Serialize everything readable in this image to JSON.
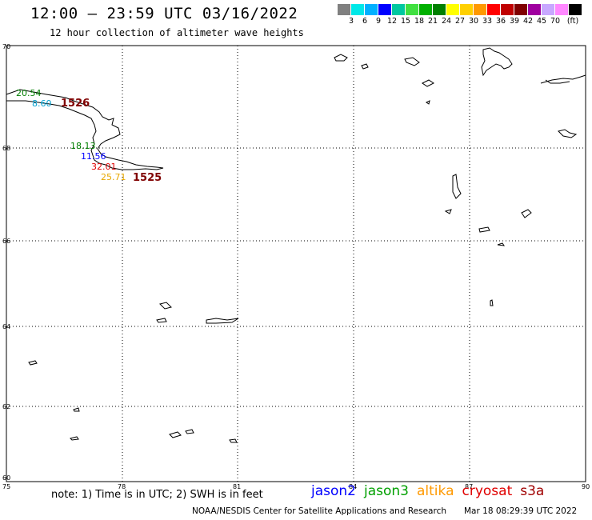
{
  "header": {
    "title": "12:00 — 23:59 UTC 03/16/2022",
    "subtitle": "12 hour collection of altimeter wave heights"
  },
  "legend": {
    "unit": "(ft)",
    "bins": [
      {
        "color": "#808080",
        "label": ""
      },
      {
        "color": "#00e8e8",
        "label": "3"
      },
      {
        "color": "#00b0ff",
        "label": "6"
      },
      {
        "color": "#0000ff",
        "label": "9"
      },
      {
        "color": "#00c8a0",
        "label": "12"
      },
      {
        "color": "#40e040",
        "label": "15"
      },
      {
        "color": "#00b000",
        "label": "18"
      },
      {
        "color": "#008000",
        "label": "21"
      },
      {
        "color": "#ffff00",
        "label": "24"
      },
      {
        "color": "#ffd000",
        "label": "27"
      },
      {
        "color": "#ff9900",
        "label": "30"
      },
      {
        "color": "#ff0000",
        "label": "33"
      },
      {
        "color": "#c00000",
        "label": "36"
      },
      {
        "color": "#800000",
        "label": "39"
      },
      {
        "color": "#a000a0",
        "label": "42"
      },
      {
        "color": "#c8a8ff",
        "label": "45"
      },
      {
        "color": "#ff88ff",
        "label": "70"
      },
      {
        "color": "#000000",
        "label": ""
      }
    ]
  },
  "map": {
    "lon_ticks": [
      "75",
      "78",
      "81",
      "84",
      "87",
      "90"
    ],
    "lat_ticks": [
      "70",
      "68",
      "66",
      "64",
      "62",
      "60"
    ],
    "observations": [
      {
        "text": "20.54",
        "color": "#008000"
      },
      {
        "text": "8.60",
        "color": "#00a0d0"
      },
      {
        "text": "1526",
        "color": "#800000"
      },
      {
        "text": "18.13",
        "color": "#008000"
      },
      {
        "text": "11.56",
        "color": "#0000ff"
      },
      {
        "text": "32.01",
        "color": "#e00000"
      },
      {
        "text": "25.71",
        "color": "#e8a800"
      },
      {
        "text": "1525",
        "color": "#800000"
      }
    ]
  },
  "footer": {
    "note": "note:  1) Time is in UTC;  2) SWH is in feet",
    "satellites": [
      {
        "name": "jason2",
        "color": "#0000ff"
      },
      {
        "name": "jason3",
        "color": "#00a000"
      },
      {
        "name": "altika",
        "color": "#ff9900"
      },
      {
        "name": "cryosat",
        "color": "#e00000"
      },
      {
        "name": "s3a",
        "color": "#a00000"
      }
    ],
    "credit": "NOAA/NESDIS Center for Satellite Applications and Research",
    "timestamp": "Mar 18 08:29:39 UTC 2022"
  }
}
